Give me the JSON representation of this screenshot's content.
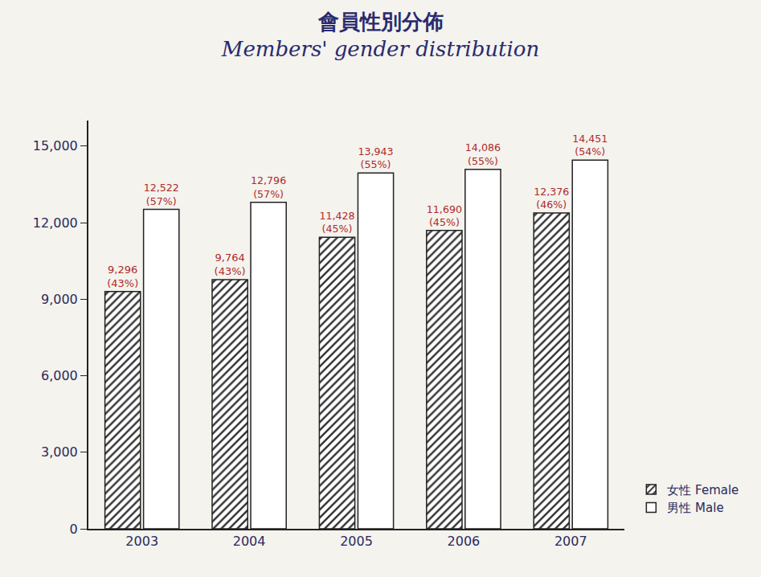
{
  "chart_data": {
    "type": "bar",
    "title": "會員性別分佈",
    "subtitle": "Members' gender distribution",
    "categories": [
      "2003",
      "2004",
      "2005",
      "2006",
      "2007"
    ],
    "series": [
      {
        "name": "女性 Female",
        "color": "#333333",
        "marker": "hatch",
        "values": [
          9296,
          9764,
          11428,
          11690,
          12376
        ],
        "value_labels": [
          "9,296 (43%)",
          "9,764 (43%)",
          "11,428 (45%)",
          "11,690 (45%)",
          "12,376 (46%)"
        ]
      },
      {
        "name": "男性 Male",
        "color": "#ffffff",
        "marker": "solid",
        "values": [
          12522,
          12796,
          13943,
          14086,
          14451
        ],
        "value_labels": [
          "12,522 (57%)",
          "12,796 (57%)",
          "13,943 (55%)",
          "14,086 (55%)",
          "14,451 (54%)"
        ]
      }
    ],
    "ylim": [
      0,
      16000
    ],
    "yticks": [
      0,
      {
        "value": 3000,
        "label": "3,000"
      },
      {
        "value": 6000,
        "label": "6,000"
      },
      {
        "value": 9000,
        "label": "9,000"
      },
      {
        "value": 12000,
        "label": "12,000"
      },
      {
        "value": 15000,
        "label": "15,000"
      }
    ],
    "grid": false,
    "data_labels": true,
    "legend": "bottom right"
  }
}
